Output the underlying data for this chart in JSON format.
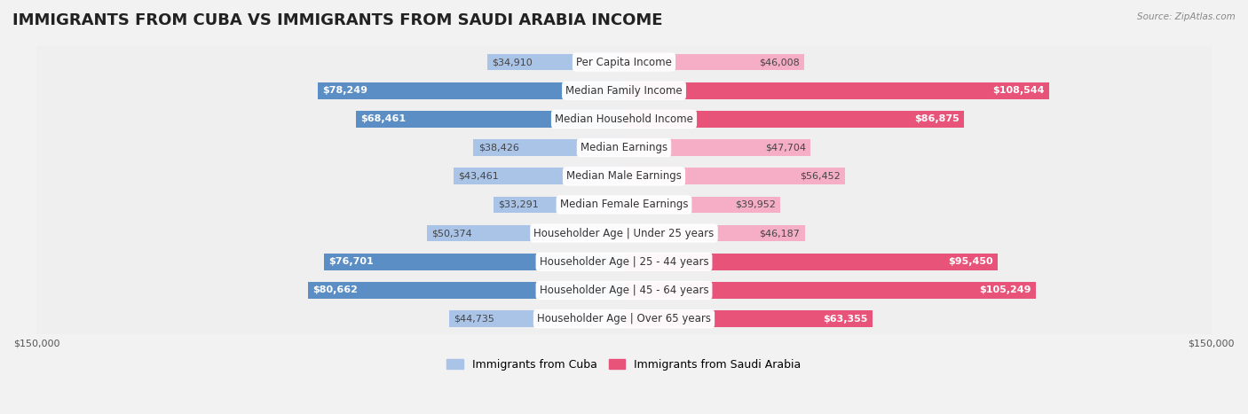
{
  "title": "IMMIGRANTS FROM CUBA VS IMMIGRANTS FROM SAUDI ARABIA INCOME",
  "source": "Source: ZipAtlas.com",
  "categories": [
    "Per Capita Income",
    "Median Family Income",
    "Median Household Income",
    "Median Earnings",
    "Median Male Earnings",
    "Median Female Earnings",
    "Householder Age | Under 25 years",
    "Householder Age | 25 - 44 years",
    "Householder Age | 45 - 64 years",
    "Householder Age | Over 65 years"
  ],
  "cuba_values": [
    34910,
    78249,
    68461,
    38426,
    43461,
    33291,
    50374,
    76701,
    80662,
    44735
  ],
  "saudi_values": [
    46008,
    108544,
    86875,
    47704,
    56452,
    39952,
    46187,
    95450,
    105249,
    63355
  ],
  "cuba_color_light": "#aac4e8",
  "cuba_color_dark": "#5b8ec4",
  "saudi_color_light": "#f5aec5",
  "saudi_color_dark": "#e8537a",
  "large_threshold": 60000,
  "max_value": 150000,
  "label_cuba": "Immigrants from Cuba",
  "label_saudi": "Immigrants from Saudi Arabia",
  "bg_color": "#f2f2f2",
  "row_bg_even": "#fafafa",
  "row_bg_odd": "#efefef",
  "title_fontsize": 13,
  "cat_fontsize": 8.5,
  "value_fontsize": 8,
  "axis_fontsize": 8,
  "legend_fontsize": 9
}
